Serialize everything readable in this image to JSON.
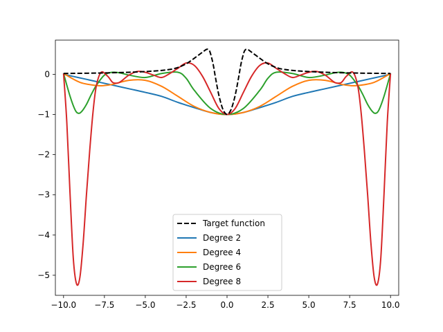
{
  "chart_data": {
    "type": "line",
    "title": "",
    "xlabel": "",
    "ylabel": "",
    "xlim": [
      -10.5,
      10.5
    ],
    "ylim": [
      -5.5,
      0.85
    ],
    "xticks": [
      -10,
      -7.5,
      -5,
      -2.5,
      0,
      2.5,
      5,
      7.5,
      10
    ],
    "xtick_labels": [
      "−10.0",
      "−7.5",
      "−5.0",
      "−2.5",
      "0.0",
      "2.5",
      "5.0",
      "7.5",
      "10.0"
    ],
    "yticks": [
      0,
      -1,
      -2,
      -3,
      -4,
      -5
    ],
    "ytick_labels": [
      "0",
      "−1",
      "−2",
      "−3",
      "−4",
      "−5"
    ],
    "grid": false,
    "legend_position": "bottom-center",
    "series": [
      {
        "name": "Target function",
        "color": "#000000",
        "dash": "dashed",
        "x": [
          -10,
          -8,
          -6,
          -4.5,
          -3.5,
          -3,
          -2.5,
          -2,
          -1.5,
          -1.25,
          -1.1,
          -1.0,
          -0.85,
          -0.7,
          -0.5,
          -0.3,
          -0.15,
          0,
          0.15,
          0.3,
          0.5,
          0.7,
          0.85,
          1.0,
          1.1,
          1.25,
          1.5,
          2,
          2.5,
          3,
          3.5,
          4.5,
          6,
          8,
          10
        ],
        "y": [
          0.02,
          0.03,
          0.05,
          0.08,
          0.12,
          0.17,
          0.26,
          0.4,
          0.55,
          0.62,
          0.6,
          0.5,
          0.25,
          -0.1,
          -0.52,
          -0.82,
          -0.95,
          -1.0,
          -0.95,
          -0.82,
          -0.52,
          -0.1,
          0.25,
          0.5,
          0.6,
          0.62,
          0.55,
          0.4,
          0.26,
          0.17,
          0.12,
          0.08,
          0.05,
          0.03,
          0.02
        ]
      },
      {
        "name": "Degree 2",
        "color": "#1f77b4",
        "dash": "solid",
        "x": [
          -10,
          -9,
          -8,
          -7,
          -6,
          -5,
          -4,
          -3,
          -2,
          -1,
          0,
          1,
          2,
          3,
          4,
          5,
          6,
          7,
          8,
          9,
          10
        ],
        "y": [
          0,
          -0.09,
          -0.18,
          -0.27,
          -0.36,
          -0.45,
          -0.55,
          -0.7,
          -0.83,
          -0.95,
          -1.0,
          -0.95,
          -0.83,
          -0.7,
          -0.55,
          -0.45,
          -0.36,
          -0.27,
          -0.18,
          -0.09,
          0
        ]
      },
      {
        "name": "Degree 4",
        "color": "#ff7f0e",
        "dash": "solid",
        "x": [
          -10,
          -9,
          -8,
          -7.5,
          -7,
          -6,
          -5,
          -4,
          -3,
          -2,
          -1,
          0,
          1,
          2,
          3,
          4,
          5,
          6,
          7,
          7.5,
          8,
          9,
          10
        ],
        "y": [
          0.02,
          -0.2,
          -0.28,
          -0.28,
          -0.25,
          -0.15,
          -0.15,
          -0.3,
          -0.55,
          -0.8,
          -0.95,
          -1.0,
          -0.95,
          -0.8,
          -0.55,
          -0.3,
          -0.15,
          -0.15,
          -0.25,
          -0.28,
          -0.28,
          -0.2,
          0.02
        ]
      },
      {
        "name": "Degree 6",
        "color": "#2ca02c",
        "dash": "solid",
        "x": [
          -10,
          -9.6,
          -9.3,
          -9.1,
          -8.9,
          -8.6,
          -8.3,
          -8,
          -7.5,
          -7,
          -6.5,
          -6,
          -5,
          -4,
          -3,
          -2.5,
          -2,
          -1,
          0,
          1,
          2,
          2.5,
          3,
          4,
          5,
          6,
          6.5,
          7,
          7.5,
          8,
          8.3,
          8.6,
          8.9,
          9.1,
          9.3,
          9.6,
          10
        ],
        "y": [
          0.02,
          -0.55,
          -0.88,
          -0.97,
          -0.93,
          -0.75,
          -0.5,
          -0.28,
          -0.02,
          0.05,
          0.03,
          -0.02,
          -0.08,
          0.02,
          0.05,
          -0.1,
          -0.4,
          -0.85,
          -1.0,
          -0.85,
          -0.4,
          -0.1,
          0.05,
          0.02,
          -0.08,
          -0.02,
          0.03,
          0.05,
          -0.02,
          -0.28,
          -0.5,
          -0.75,
          -0.93,
          -0.97,
          -0.88,
          -0.55,
          0.02
        ]
      },
      {
        "name": "Degree 8",
        "color": "#d62728",
        "dash": "solid",
        "x": [
          -10,
          -9.8,
          -9.6,
          -9.4,
          -9.2,
          -9,
          -8.8,
          -8.6,
          -8.4,
          -8.2,
          -8,
          -7.7,
          -7.3,
          -7,
          -6.7,
          -6.5,
          -6,
          -5.5,
          -5,
          -4.5,
          -4,
          -3.5,
          -3,
          -2.5,
          -2,
          -1.5,
          -1,
          -0.5,
          0,
          0.5,
          1,
          1.5,
          2,
          2.5,
          3,
          3.5,
          4,
          4.5,
          5,
          5.5,
          6,
          6.5,
          6.7,
          7,
          7.3,
          7.7,
          8,
          8.2,
          8.4,
          8.6,
          8.8,
          9,
          9.2,
          9.4,
          9.6,
          9.8,
          10
        ],
        "y": [
          0.02,
          -1.2,
          -3.0,
          -4.6,
          -5.22,
          -5.05,
          -4.2,
          -3.0,
          -1.9,
          -0.95,
          -0.3,
          0.05,
          -0.05,
          -0.2,
          -0.22,
          -0.18,
          -0.02,
          0.07,
          0.05,
          -0.02,
          -0.08,
          0.02,
          0.15,
          0.28,
          0.22,
          -0.05,
          -0.45,
          -0.85,
          -1.0,
          -0.85,
          -0.45,
          -0.05,
          0.22,
          0.28,
          0.15,
          0.02,
          -0.08,
          -0.02,
          0.05,
          0.07,
          -0.02,
          -0.18,
          -0.22,
          -0.2,
          -0.05,
          0.05,
          -0.3,
          -0.95,
          -1.9,
          -3.0,
          -4.2,
          -5.05,
          -5.22,
          -4.6,
          -3.0,
          -1.2,
          0.02
        ]
      }
    ]
  }
}
